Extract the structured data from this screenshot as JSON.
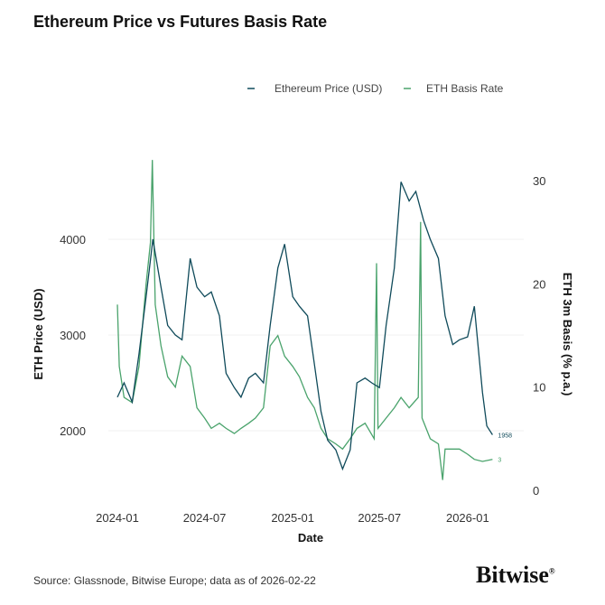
{
  "title": "Ethereum Price vs Futures Basis Rate",
  "source": "Source: Glassnode, Bitwise Europe; data as of 2026-02-22",
  "logo": "Bitwise",
  "chart_data": {
    "type": "line",
    "title": "Ethereum Price vs Futures Basis Rate",
    "xlabel": "Date",
    "ylabel": "ETH Price (USD)",
    "y2label": "ETH 3m Basis (% p.a.)",
    "xticks": [
      "2024-01",
      "2024-07",
      "2025-01",
      "2025-07",
      "2026-01"
    ],
    "yticks": [
      2000,
      3000,
      4000
    ],
    "y2ticks": [
      0,
      10,
      20,
      30
    ],
    "legend_position": "top-right",
    "grid": "horizontal, faint",
    "series": [
      {
        "name": "Ethereum Price (USD)",
        "axis": "left",
        "color": "#0f4a5a",
        "end_label": "1958",
        "x": [
          "2024-01-01",
          "2024-01-15",
          "2024-02-01",
          "2024-02-15",
          "2024-03-01",
          "2024-03-15",
          "2024-04-01",
          "2024-04-15",
          "2024-05-01",
          "2024-05-15",
          "2024-06-01",
          "2024-06-15",
          "2024-07-01",
          "2024-07-15",
          "2024-08-01",
          "2024-08-15",
          "2024-09-01",
          "2024-09-15",
          "2024-10-01",
          "2024-10-15",
          "2024-11-01",
          "2024-11-15",
          "2024-12-01",
          "2024-12-15",
          "2025-01-01",
          "2025-01-15",
          "2025-02-01",
          "2025-02-15",
          "2025-03-01",
          "2025-03-15",
          "2025-04-01",
          "2025-04-15",
          "2025-05-01",
          "2025-05-15",
          "2025-06-01",
          "2025-06-15",
          "2025-07-01",
          "2025-07-15",
          "2025-08-01",
          "2025-08-15",
          "2025-09-01",
          "2025-09-15",
          "2025-10-01",
          "2025-10-15",
          "2025-11-01",
          "2025-11-15",
          "2025-12-01",
          "2025-12-15",
          "2026-01-01",
          "2026-01-15",
          "2026-02-01",
          "2026-02-10",
          "2026-02-22"
        ],
        "y": [
          2350,
          2500,
          2300,
          2800,
          3400,
          4000,
          3500,
          3100,
          3000,
          2950,
          3800,
          3500,
          3400,
          3450,
          3200,
          2600,
          2450,
          2350,
          2550,
          2600,
          2500,
          3100,
          3700,
          3950,
          3400,
          3300,
          3200,
          2700,
          2200,
          1900,
          1800,
          1600,
          1800,
          2500,
          2550,
          2500,
          2450,
          3100,
          3700,
          4600,
          4400,
          4500,
          4200,
          4000,
          3800,
          3200,
          2900,
          2950,
          2980,
          3300,
          2400,
          2050,
          1958
        ]
      },
      {
        "name": "ETH Basis Rate",
        "axis": "right",
        "color": "#4aa36c",
        "end_label": "3",
        "x": [
          "2024-01-01",
          "2024-01-05",
          "2024-01-15",
          "2024-02-01",
          "2024-02-15",
          "2024-03-01",
          "2024-03-10",
          "2024-03-14",
          "2024-03-20",
          "2024-04-01",
          "2024-04-15",
          "2024-05-01",
          "2024-05-15",
          "2024-06-01",
          "2024-06-15",
          "2024-07-01",
          "2024-07-15",
          "2024-08-01",
          "2024-08-15",
          "2024-09-01",
          "2024-09-15",
          "2024-10-01",
          "2024-10-15",
          "2024-11-01",
          "2024-11-15",
          "2024-12-01",
          "2024-12-15",
          "2025-01-01",
          "2025-01-15",
          "2025-02-01",
          "2025-02-15",
          "2025-03-01",
          "2025-03-15",
          "2025-04-01",
          "2025-04-15",
          "2025-05-01",
          "2025-05-15",
          "2025-06-01",
          "2025-06-20",
          "2025-06-25",
          "2025-06-28",
          "2025-07-15",
          "2025-08-01",
          "2025-08-15",
          "2025-09-01",
          "2025-09-20",
          "2025-09-25",
          "2025-09-28",
          "2025-10-15",
          "2025-11-01",
          "2025-11-10",
          "2025-11-15",
          "2025-12-01",
          "2025-12-15",
          "2026-01-01",
          "2026-01-15",
          "2026-02-01",
          "2026-02-22"
        ],
        "y": [
          18,
          12,
          9,
          8.5,
          12,
          20,
          24,
          32,
          18,
          14,
          11,
          10,
          13,
          12,
          8,
          7,
          6,
          6.5,
          6,
          5.5,
          6,
          6.5,
          7,
          8,
          14,
          15,
          13,
          12,
          11,
          9,
          8,
          6,
          5,
          4.5,
          4,
          5,
          6,
          6.5,
          5,
          22,
          6,
          7,
          8,
          9,
          8,
          9,
          26,
          7,
          5,
          4.5,
          1,
          4,
          4,
          4,
          3.5,
          3,
          2.8,
          3
        ]
      }
    ]
  }
}
